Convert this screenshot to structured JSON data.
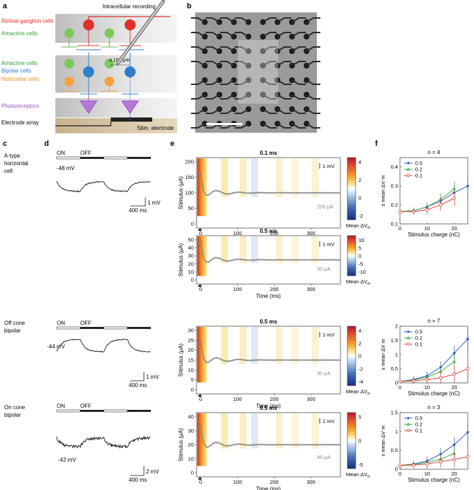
{
  "panels": {
    "a": "a",
    "b": "b",
    "c": "c",
    "d": "d",
    "e": "e",
    "f": "f"
  },
  "schematic": {
    "title": "Intracellular recording",
    "layers": {
      "rgc": "Retinal ganglion cells",
      "amacrine1": "Amacrine cells",
      "amacrine2": "Amacrine cells",
      "bipolar": "Bipolar cells",
      "horizontal": "Horizontal cells",
      "photoreceptors": "Photoreceptors",
      "electrode_array": "Electrode array"
    },
    "distance_label": "≤ 100 μm",
    "stim_label": "Stim. electrode",
    "colors": {
      "rgc": "#e0302a",
      "amacrine": "#5cb844",
      "bipolar": "#2d7ec9",
      "horizontal": "#f4a23c",
      "photoreceptor": "#9b4fc1"
    }
  },
  "micrograph": {
    "description_label": ""
  },
  "cells": {
    "row1": {
      "name_lines": [
        "A-type",
        "horizontal",
        "cell"
      ]
    },
    "row2": {
      "name_lines": [
        "Off cone",
        "bipolar"
      ]
    },
    "row3": {
      "name_lines": [
        "On cone",
        "bipolar"
      ]
    }
  },
  "traces": {
    "on_label": "ON",
    "off_label": "OFF",
    "row1": {
      "vrest": "-48 mV",
      "scale_v": "1 mV",
      "scale_t": "400 ms"
    },
    "row2": {
      "vrest": "-44 mV",
      "scale_v": "1 mV",
      "scale_t": "400 ms"
    },
    "row3": {
      "vrest": "-42 mV",
      "scale_v": "2 mV",
      "scale_t": "400 ms"
    }
  },
  "heatmaps": [
    {
      "title": "0.1 ms",
      "ylabel": "Stimulus (μA)",
      "yticks": [
        "0",
        "50",
        "100",
        "150",
        "200"
      ],
      "xticks": [
        "0",
        "100",
        "200",
        "300"
      ],
      "xlabel": "",
      "trace_label": "200 μA",
      "scale": "1 mV",
      "cbar_ticks": [
        "4",
        "2",
        "0",
        "-2"
      ],
      "cbar_label": "Mean ΔV"
    },
    {
      "title": "0.5 ms",
      "ylabel": "Stimulus (μA)",
      "yticks": [
        "0",
        "10",
        "20",
        "30",
        "40",
        "50"
      ],
      "xticks": [
        "0",
        "100",
        "200",
        "300"
      ],
      "xlabel": "Time (ms)",
      "trace_label": "50 μA",
      "scale": "1 mV",
      "cbar_ticks": [
        "10",
        "5",
        "0",
        "-5",
        "-10"
      ],
      "cbar_label": "Mean ΔV"
    },
    {
      "title": "0.5 ms",
      "ylabel": "Stimulus (μA)",
      "yticks": [
        "0",
        "5",
        "10",
        "15",
        "20",
        "25",
        "30"
      ],
      "xticks": [
        "0",
        "100",
        "200",
        "300"
      ],
      "xlabel": "Time (ms)",
      "trace_label": "30 μA",
      "scale": "1 mV",
      "cbar_ticks": [
        "4",
        "2",
        "0",
        "-2",
        "-4"
      ],
      "cbar_label": "Mean ΔV"
    },
    {
      "title": "0.5 ms",
      "ylabel": "Stimulus (μA)",
      "yticks": [
        "0",
        "10",
        "20",
        "30",
        "40"
      ],
      "xticks": [
        "0",
        "100",
        "200",
        "300"
      ],
      "xlabel": "Time (ms)",
      "trace_label": "40 μA",
      "scale": "1 mV",
      "cbar_ticks": [
        "5",
        "0",
        "-5"
      ],
      "cbar_label": "Mean ΔV"
    }
  ],
  "chart_data": [
    {
      "type": "line",
      "title": "n = 4",
      "xlabel": "Stimulus charge (nC)",
      "ylabel": "s mean ΔV m",
      "xlim": [
        0,
        25
      ],
      "ylim": [
        0.1,
        0.45
      ],
      "xticks": [
        "0",
        "10",
        "20"
      ],
      "yticks": [
        "0.1",
        "0.2",
        "0.3",
        "0.4"
      ],
      "x": [
        0,
        5,
        10,
        15,
        20,
        25
      ],
      "series": [
        {
          "name": "0.5",
          "color": "#2b57c4",
          "x": [
            0,
            5,
            10,
            15,
            20,
            25
          ],
          "values": [
            0.165,
            0.17,
            0.19,
            0.22,
            0.265,
            0.3
          ]
        },
        {
          "name": "0.2",
          "color": "#3fa83f",
          "x": [
            0,
            5,
            10,
            15,
            20
          ],
          "values": [
            0.165,
            0.17,
            0.19,
            0.23,
            0.285
          ]
        },
        {
          "name": "0.1",
          "color": "#e03a30",
          "x": [
            0,
            5,
            10,
            15,
            20
          ],
          "values": [
            0.165,
            0.165,
            0.175,
            0.2,
            0.235
          ]
        }
      ]
    },
    {
      "type": "line",
      "title": "n = 7",
      "xlabel": "Stimulus charge (nC)",
      "ylabel": "s mean ΔV m",
      "xlim": [
        0,
        25
      ],
      "ylim": [
        0,
        2
      ],
      "xticks": [
        "0",
        "10",
        "20"
      ],
      "yticks": [
        "0",
        "0.5",
        "1",
        "1.5",
        "2"
      ],
      "x": [
        0,
        5,
        10,
        15,
        20,
        25
      ],
      "series": [
        {
          "name": "0.5",
          "color": "#2b57c4",
          "x": [
            0,
            5,
            10,
            15,
            20,
            25
          ],
          "values": [
            0.05,
            0.12,
            0.25,
            0.55,
            1.05,
            1.55
          ]
        },
        {
          "name": "0.2",
          "color": "#3fa83f",
          "x": [
            0,
            5,
            10,
            15,
            20
          ],
          "values": [
            0.05,
            0.1,
            0.2,
            0.4,
            0.75
          ]
        },
        {
          "name": "0.1",
          "color": "#e03a30",
          "x": [
            0,
            5,
            10,
            15,
            20,
            25
          ],
          "values": [
            0.05,
            0.07,
            0.12,
            0.18,
            0.3,
            0.5
          ]
        }
      ]
    },
    {
      "type": "line",
      "title": "n = 3",
      "xlabel": "Stimulus charge (nC)",
      "ylabel": "s mean ΔV m",
      "xlim": [
        0,
        25
      ],
      "ylim": [
        0,
        1.5
      ],
      "xticks": [
        "0",
        "10",
        "20"
      ],
      "yticks": [
        "0",
        "0.5",
        "1",
        "1.5"
      ],
      "x": [
        0,
        5,
        10,
        15,
        20,
        25
      ],
      "series": [
        {
          "name": "0.5",
          "color": "#2b57c4",
          "x": [
            0,
            5,
            10,
            15,
            20,
            25
          ],
          "values": [
            0.1,
            0.14,
            0.22,
            0.4,
            0.65,
            0.98
          ]
        },
        {
          "name": "0.2",
          "color": "#3fa83f",
          "x": [
            0,
            5,
            10,
            15,
            20
          ],
          "values": [
            0.1,
            0.13,
            0.18,
            0.27,
            0.42
          ]
        },
        {
          "name": "0.1",
          "color": "#e03a30",
          "x": [
            0,
            5,
            10,
            15,
            20,
            25
          ],
          "values": [
            0.1,
            0.11,
            0.14,
            0.2,
            0.26,
            0.33
          ]
        }
      ]
    }
  ]
}
